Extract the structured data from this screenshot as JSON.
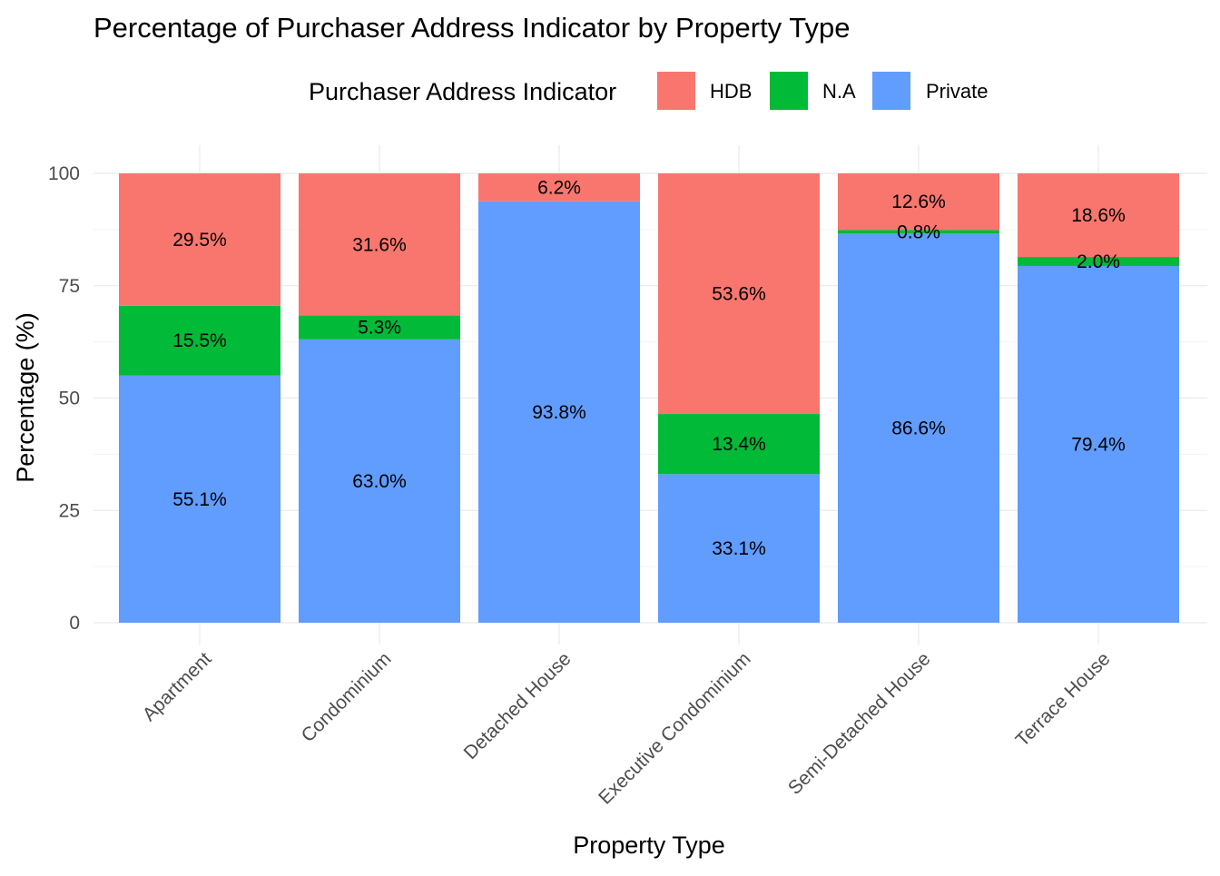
{
  "chart_data": {
    "type": "bar",
    "stacked": true,
    "title": "Percentage of Purchaser Address Indicator by Property Type",
    "xlabel": "Property Type",
    "ylabel": "Percentage (%)",
    "ylim": [
      0,
      100
    ],
    "yticks": [
      0,
      25,
      50,
      75,
      100
    ],
    "grid": true,
    "legend": {
      "title": "Purchaser Address Indicator",
      "position": "top",
      "entries": [
        "HDB",
        "N.A",
        "Private"
      ]
    },
    "categories": [
      "Apartment",
      "Condominium",
      "Detached House",
      "Executive Condominium",
      "Semi-Detached House",
      "Terrace House"
    ],
    "stack_order_bottom_to_top": [
      "Private",
      "N.A",
      "HDB"
    ],
    "series": [
      {
        "name": "HDB",
        "color": "#F8766D",
        "values": [
          29.5,
          31.6,
          6.2,
          53.6,
          12.6,
          18.6
        ],
        "labels": [
          "29.5%",
          "31.6%",
          "6.2%",
          "53.6%",
          "12.6%",
          "18.6%"
        ]
      },
      {
        "name": "N.A",
        "color": "#00BA38",
        "values": [
          15.5,
          5.3,
          null,
          13.4,
          0.8,
          2.0
        ],
        "labels": [
          "15.5%",
          "5.3%",
          null,
          "13.4%",
          "0.8%",
          "2.0%"
        ]
      },
      {
        "name": "Private",
        "color": "#619CFF",
        "values": [
          55.1,
          63.0,
          93.8,
          33.1,
          86.6,
          79.4
        ],
        "labels": [
          "55.1%",
          "63.0%",
          "93.8%",
          "33.1%",
          "86.6%",
          "79.4%"
        ]
      }
    ]
  }
}
